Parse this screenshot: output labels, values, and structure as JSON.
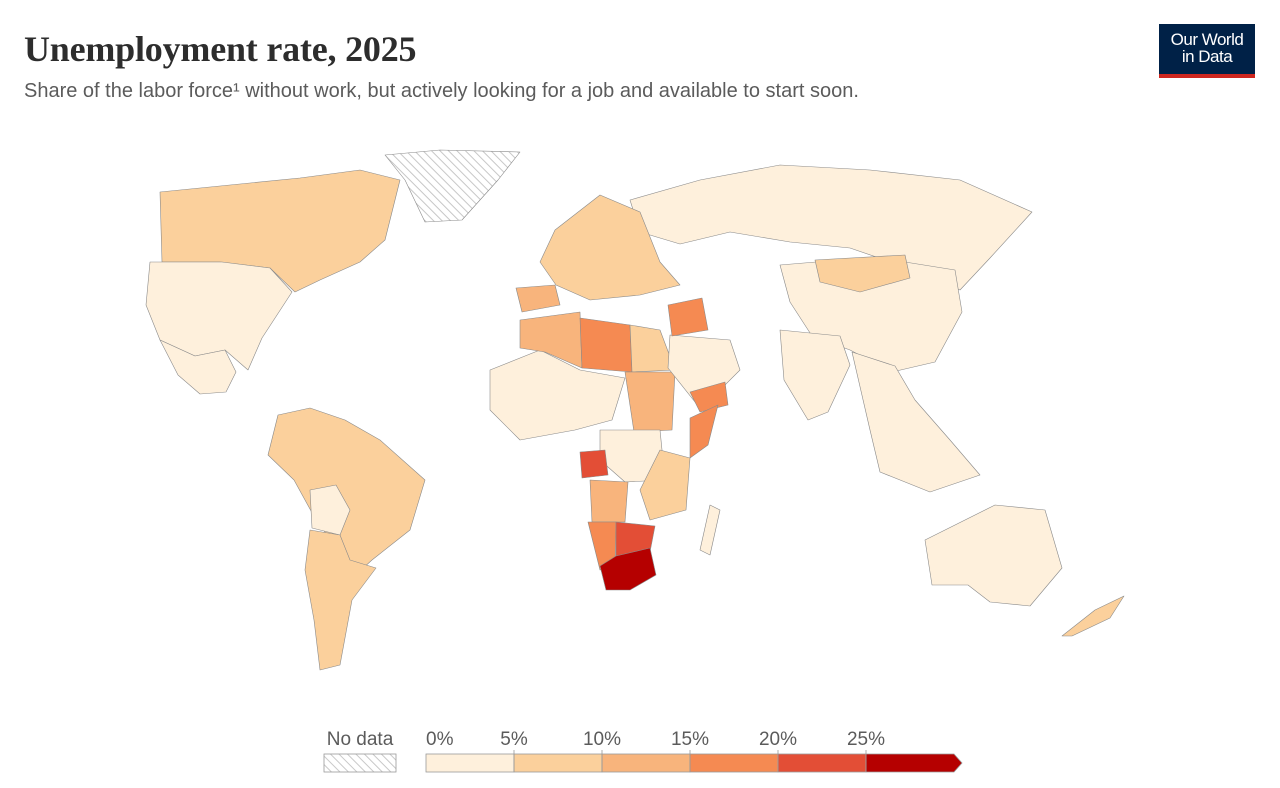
{
  "header": {
    "title": "Unemployment rate, 2025",
    "subtitle": "Share of the labor force¹ without work, but actively looking for a job and available to start soon."
  },
  "logo": {
    "line1": "Our World",
    "line2": "in Data"
  },
  "legend": {
    "no_data_label": "No data",
    "ticks": [
      "0%",
      "5%",
      "10%",
      "15%",
      "20%",
      "25%"
    ],
    "bins": [
      {
        "min": 0,
        "max": 5,
        "color": "#fef0dc"
      },
      {
        "min": 5,
        "max": 10,
        "color": "#fbd09c"
      },
      {
        "min": 10,
        "max": 15,
        "color": "#f8b47c"
      },
      {
        "min": 15,
        "max": 20,
        "color": "#f58a52"
      },
      {
        "min": 20,
        "max": 25,
        "color": "#e34e36"
      },
      {
        "min": 25,
        "max": 30,
        "color": "#b50000"
      }
    ]
  },
  "chart_data": {
    "type": "choropleth-map",
    "unit": "%",
    "regions": [
      {
        "id": "canada",
        "value": 6.8
      },
      {
        "id": "usa",
        "value": 4.2
      },
      {
        "id": "mexico",
        "value": 2.7
      },
      {
        "id": "south-america-north",
        "value": 7.5
      },
      {
        "id": "bolivia",
        "value": 3.5
      },
      {
        "id": "argentina",
        "value": 7.2
      },
      {
        "id": "russia",
        "value": 2.5
      },
      {
        "id": "western-europe",
        "value": 5.5
      },
      {
        "id": "spain",
        "value": 10.5
      },
      {
        "id": "china",
        "value": 4.6
      },
      {
        "id": "mongolia",
        "value": 6.0
      },
      {
        "id": "india",
        "value": 4.2
      },
      {
        "id": "southeast-asia",
        "value": 2.5
      },
      {
        "id": "australia",
        "value": 4.2
      },
      {
        "id": "new-zealand",
        "value": 5.2
      },
      {
        "id": "sahel",
        "value": 4.0
      },
      {
        "id": "algeria",
        "value": 11.5
      },
      {
        "id": "libya",
        "value": 18.5
      },
      {
        "id": "egypt",
        "value": 7.0
      },
      {
        "id": "sudan",
        "value": 11.0
      },
      {
        "id": "arabia",
        "value": 4.0
      },
      {
        "id": "yemen",
        "value": 17.5
      },
      {
        "id": "iraq",
        "value": 15.5
      },
      {
        "id": "somalia",
        "value": 19.0
      },
      {
        "id": "central-africa",
        "value": 3.5
      },
      {
        "id": "congo",
        "value": 21.0
      },
      {
        "id": "east-africa",
        "value": 5.5
      },
      {
        "id": "angola",
        "value": 14.5
      },
      {
        "id": "namibia",
        "value": 19.5
      },
      {
        "id": "botswana",
        "value": 23.0
      },
      {
        "id": "south-africa",
        "value": 33.0
      },
      {
        "id": "madagascar",
        "value": 3.0
      },
      {
        "id": "greenland",
        "value": null
      }
    ]
  }
}
